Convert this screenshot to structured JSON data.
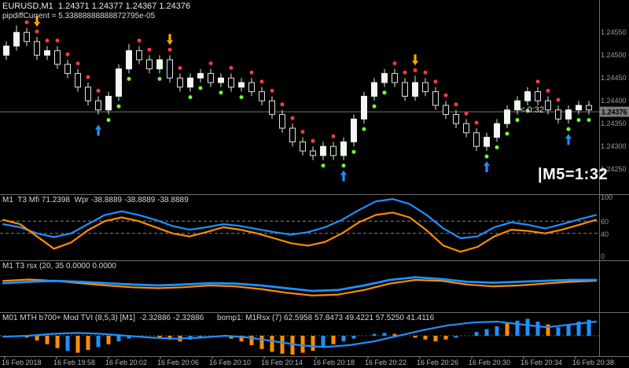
{
  "header": {
    "line1": "EURUSD,M1  1.24371 1.24377 1.24367 1.24376",
    "pipdiff": "pipdiffCurrent = 5.33888888888872795e-05"
  },
  "overlays": {
    "countdown": "< 0:32",
    "m5_timer": "|M5=1:32"
  },
  "colors": {
    "bull": "#f5f5f5",
    "bear": "#060606",
    "bull_stroke": "#e2ffe2",
    "bear_stroke": "#e0e0e0",
    "wick": "#cfefcf",
    "dot_red": "#ff3b3b",
    "dot_green": "#70ff2e",
    "arrow_up": "#1e90ff",
    "arrow_down": "#ffa500",
    "line_blue": "#1e90ff",
    "line_orange": "#ff8c00",
    "grid": "#6e6e6e",
    "axis_text": "#9a9a9a",
    "time_text": "#b5b5b5"
  },
  "chart_data": {
    "type": "candlestick",
    "symbol": "EURUSD",
    "timeframe": "M1",
    "current_price": 1.24376,
    "price_axis": [
      "1.24550",
      "1.24500",
      "1.24450",
      "1.24400",
      "1.24350",
      "1.24300",
      "1.24250"
    ],
    "candles": [
      [
        50,
        53,
        49,
        52,
        "",
        ""
      ],
      [
        52,
        56.5,
        51,
        55,
        "",
        ""
      ],
      [
        55,
        56,
        52,
        53,
        "r",
        ""
      ],
      [
        53,
        54,
        49,
        50,
        "r",
        "d"
      ],
      [
        50,
        52,
        49,
        51,
        "r",
        ""
      ],
      [
        51,
        52,
        47,
        48,
        "r",
        ""
      ],
      [
        48,
        49,
        45,
        46,
        "r",
        ""
      ],
      [
        46,
        47,
        42,
        43,
        "r",
        ""
      ],
      [
        43,
        44,
        39,
        40,
        "r",
        ""
      ],
      [
        40,
        41,
        37,
        38,
        "r",
        "u"
      ],
      [
        38,
        42,
        37,
        41,
        "g",
        ""
      ],
      [
        41,
        48,
        40,
        47,
        "g",
        ""
      ],
      [
        47,
        52.5,
        46,
        51,
        "g",
        ""
      ],
      [
        51,
        52,
        48,
        49,
        "r",
        ""
      ],
      [
        49,
        50,
        46,
        47,
        "r",
        ""
      ],
      [
        47,
        50,
        46,
        49,
        "g",
        ""
      ],
      [
        49,
        50,
        44,
        45,
        "r",
        "d"
      ],
      [
        45,
        46,
        42,
        43,
        "r",
        ""
      ],
      [
        43,
        46,
        42,
        45,
        "g",
        ""
      ],
      [
        45,
        47,
        44,
        46,
        "g",
        ""
      ],
      [
        46,
        47,
        43,
        44,
        "r",
        ""
      ],
      [
        44,
        46,
        43,
        45,
        "g",
        ""
      ],
      [
        45,
        46,
        42,
        43,
        "r",
        ""
      ],
      [
        43,
        45,
        42,
        44,
        "g",
        ""
      ],
      [
        44,
        45,
        41,
        42,
        "r",
        ""
      ],
      [
        42,
        43,
        39,
        40,
        "r",
        ""
      ],
      [
        40,
        41,
        36,
        37,
        "r",
        ""
      ],
      [
        37,
        38,
        33,
        34,
        "r",
        ""
      ],
      [
        34,
        35,
        30,
        31,
        "r",
        ""
      ],
      [
        31,
        32,
        28,
        29,
        "r",
        ""
      ],
      [
        29,
        30,
        27,
        28,
        "r",
        ""
      ],
      [
        28,
        31,
        27,
        30,
        "g",
        ""
      ],
      [
        30,
        31,
        27,
        28,
        "r",
        ""
      ],
      [
        28,
        32,
        27,
        31,
        "g",
        "u"
      ],
      [
        31,
        37,
        30,
        36,
        "g",
        ""
      ],
      [
        36,
        42,
        35,
        41,
        "g",
        ""
      ],
      [
        41,
        45,
        40,
        44,
        "g",
        ""
      ],
      [
        44,
        47,
        43,
        46,
        "g",
        ""
      ],
      [
        46,
        47,
        43,
        44,
        "r",
        ""
      ],
      [
        44,
        45,
        40,
        41,
        "r",
        ""
      ],
      [
        41,
        45.5,
        40,
        44,
        "r",
        "d"
      ],
      [
        44,
        45,
        41,
        42,
        "r",
        ""
      ],
      [
        42,
        43,
        38,
        39,
        "r",
        ""
      ],
      [
        39,
        40,
        36,
        37,
        "r",
        ""
      ],
      [
        37,
        38,
        34,
        35,
        "r",
        ""
      ],
      [
        35,
        36,
        32,
        33,
        "r",
        ""
      ],
      [
        33,
        34,
        29,
        30,
        "r",
        ""
      ],
      [
        30,
        33,
        29,
        32,
        "g",
        "u"
      ],
      [
        32,
        36,
        31,
        35,
        "g",
        ""
      ],
      [
        35,
        39,
        34,
        38,
        "g",
        ""
      ],
      [
        38,
        41,
        37,
        40,
        "g",
        ""
      ],
      [
        40,
        43,
        39,
        42,
        "g",
        ""
      ],
      [
        42,
        43,
        39,
        40,
        "r",
        ""
      ],
      [
        40,
        41,
        37,
        38,
        "r",
        ""
      ],
      [
        38,
        39,
        35,
        36,
        "r",
        ""
      ],
      [
        36,
        39,
        35,
        38,
        "g",
        "u"
      ],
      [
        38,
        40,
        37,
        39,
        "g",
        ""
      ],
      [
        39,
        40,
        37,
        38,
        "g",
        ""
      ]
    ],
    "panes": [
      {
        "caption": "M1  T3 Mfi 71.2398  Wpr -38.8889 -38.8889 -38.8889",
        "levels": [
          60,
          40
        ],
        "axis": [
          [
            100,
            "100"
          ],
          [
            60,
            "60"
          ],
          [
            40,
            "40"
          ],
          [
            0,
            "0"
          ]
        ],
        "series": [
          {
            "name": "T3 Mfi",
            "color": "blue",
            "values": [
              55,
              50,
              40,
              34,
              40,
              55,
              70,
              76,
              70,
              62,
              52,
              46,
              50,
              55,
              52,
              47,
              42,
              38,
              42,
              50,
              62,
              78,
              92,
              96,
              88,
              70,
              48,
              32,
              35,
              50,
              58,
              54,
              48,
              55,
              63,
              70
            ]
          },
          {
            "name": "Wpr",
            "color": "orange",
            "values": [
              62,
              55,
              35,
              15,
              25,
              45,
              60,
              66,
              60,
              50,
              40,
              35,
              42,
              50,
              46,
              40,
              32,
              24,
              20,
              26,
              40,
              58,
              70,
              74,
              66,
              45,
              20,
              10,
              18,
              35,
              46,
              44,
              40,
              46,
              54,
              62
            ]
          }
        ]
      },
      {
        "caption": "M1 T3 rsx (20, 35 0.0000 0.0000",
        "series": [
          {
            "name": "T3 rsx blue",
            "color": "blue",
            "values": [
              55,
              58,
              60,
              58,
              55,
              52,
              50,
              52,
              55,
              54,
              50,
              44,
              38,
              40,
              50,
              62,
              68,
              64,
              58,
              56,
              58,
              60,
              62,
              62
            ]
          },
          {
            "name": "T3 rsx orange",
            "color": "orange",
            "values": [
              60,
              63,
              60,
              55,
              50,
              46,
              44,
              46,
              50,
              48,
              42,
              34,
              28,
              30,
              40,
              54,
              62,
              60,
              52,
              48,
              50,
              54,
              58,
              60
            ]
          }
        ]
      },
      {
        "caption": "M01 MTH b700+ Mod TVI (8,5,3) [M1]  -2.32886 -2.32886      bomp1: M1Rsx (7) 62.5958 57.8473 49.4221 57.5250 41.4116",
        "bars": [
          [
            0,
            ""
          ],
          [
            0,
            ""
          ],
          [
            -0.1,
            "o"
          ],
          [
            -0.25,
            "o"
          ],
          [
            -0.45,
            "o"
          ],
          [
            -0.65,
            "o"
          ],
          [
            -0.8,
            "b"
          ],
          [
            -0.9,
            "o"
          ],
          [
            -0.75,
            "o"
          ],
          [
            -0.6,
            "b"
          ],
          [
            -0.45,
            "o"
          ],
          [
            -0.3,
            "b"
          ],
          [
            -0.15,
            "b"
          ],
          [
            0,
            ""
          ],
          [
            0,
            ""
          ],
          [
            -0.1,
            "o"
          ],
          [
            -0.2,
            "o"
          ],
          [
            -0.3,
            "o"
          ],
          [
            -0.2,
            "b"
          ],
          [
            -0.1,
            "b"
          ],
          [
            0,
            ""
          ],
          [
            0,
            ""
          ],
          [
            -0.15,
            "o"
          ],
          [
            -0.3,
            "o"
          ],
          [
            -0.5,
            "o"
          ],
          [
            -0.7,
            "o"
          ],
          [
            -0.85,
            "o"
          ],
          [
            -0.95,
            "o"
          ],
          [
            -1,
            "o"
          ],
          [
            -0.9,
            "o"
          ],
          [
            -0.8,
            "o"
          ],
          [
            -0.6,
            "b"
          ],
          [
            -0.45,
            "o"
          ],
          [
            -0.3,
            "b"
          ],
          [
            -0.15,
            "b"
          ],
          [
            0,
            ""
          ],
          [
            0.1,
            "b"
          ],
          [
            0.15,
            "b"
          ],
          [
            0.1,
            "o"
          ],
          [
            0,
            ""
          ],
          [
            -0.1,
            "o"
          ],
          [
            -0.2,
            "o"
          ],
          [
            -0.3,
            "o"
          ],
          [
            -0.2,
            "o"
          ],
          [
            -0.1,
            "b"
          ],
          [
            0,
            ""
          ],
          [
            0.2,
            "b"
          ],
          [
            0.35,
            "b"
          ],
          [
            0.5,
            "b"
          ],
          [
            0.65,
            "o"
          ],
          [
            0.8,
            "b"
          ],
          [
            0.9,
            "b"
          ],
          [
            0.75,
            "b"
          ],
          [
            0.6,
            "o"
          ],
          [
            0.45,
            "b"
          ],
          [
            0.6,
            "b"
          ],
          [
            0.75,
            "b"
          ],
          [
            0.85,
            "b"
          ]
        ],
        "line": [
          -0.05,
          0,
          0.1,
          0.15,
          0.1,
          0,
          -0.1,
          -0.15,
          -0.1,
          0,
          -0.1,
          -0.3,
          -0.5,
          -0.6,
          -0.5,
          -0.3,
          0,
          0.3,
          0.55,
          0.7,
          0.75,
          0.6,
          0.45,
          0.6,
          0.75
        ]
      }
    ],
    "time_labels": [
      "16 Feb 2018",
      "16 Feb 19:58",
      "16 Feb 20:02",
      "16 Feb 20:06",
      "16 Feb 20:10",
      "16 Feb 20:14",
      "16 Feb 20:18",
      "16 Feb 20:22",
      "16 Feb 20:26",
      "16 Feb 20:30",
      "16 Feb 20:34",
      "16 Feb 20:38"
    ]
  }
}
